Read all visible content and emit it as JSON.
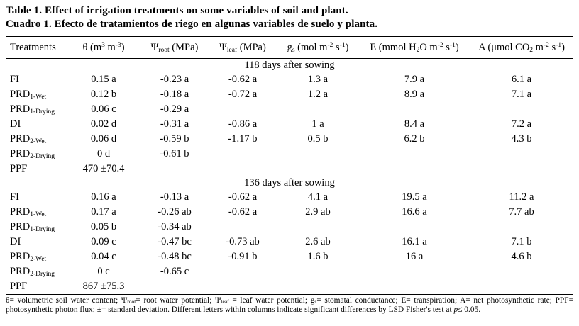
{
  "titles": {
    "english": "Table 1. Effect of irrigation treatments on some variables of soil and plant.",
    "spanish": "Cuadro 1. Efecto de tratamientos de riego en algunas variables de suelo y planta."
  },
  "table": {
    "headers": [
      {
        "id": "treatments",
        "parts": [
          {
            "t": "Treatments"
          }
        ]
      },
      {
        "id": "theta",
        "parts": [
          {
            "t": "θ (m"
          },
          {
            "t": "3",
            "s": "sup"
          },
          {
            "t": " m"
          },
          {
            "t": "-3",
            "s": "sup"
          },
          {
            "t": ")"
          }
        ]
      },
      {
        "id": "psi-root",
        "parts": [
          {
            "t": "Ψ"
          },
          {
            "t": "root",
            "s": "sub"
          },
          {
            "t": " (MPa)"
          }
        ]
      },
      {
        "id": "psi-leaf",
        "parts": [
          {
            "t": "Ψ"
          },
          {
            "t": "leaf",
            "s": "sub"
          },
          {
            "t": " (MPa)"
          }
        ]
      },
      {
        "id": "gs",
        "parts": [
          {
            "t": "g"
          },
          {
            "t": "s",
            "s": "sub"
          },
          {
            "t": " (mol m"
          },
          {
            "t": "-2",
            "s": "sup"
          },
          {
            "t": " s"
          },
          {
            "t": "-1",
            "s": "sup"
          },
          {
            "t": ")"
          }
        ]
      },
      {
        "id": "E",
        "parts": [
          {
            "t": "E (mmol H"
          },
          {
            "t": "2",
            "s": "sub"
          },
          {
            "t": "O m"
          },
          {
            "t": "-2",
            "s": "sup"
          },
          {
            "t": " s"
          },
          {
            "t": "-1",
            "s": "sup"
          },
          {
            "t": ")"
          }
        ]
      },
      {
        "id": "A",
        "parts": [
          {
            "t": "A (μmol CO"
          },
          {
            "t": "2",
            "s": "sub"
          },
          {
            "t": " m"
          },
          {
            "t": "-2",
            "s": "sup"
          },
          {
            "t": " s"
          },
          {
            "t": "-1",
            "s": "sup"
          },
          {
            "t": ")"
          }
        ]
      }
    ],
    "sections": [
      {
        "label": "118 days after sowing",
        "rows": [
          {
            "treatment": [
              {
                "t": "FI"
              }
            ],
            "values": [
              "0.15 a",
              "-0.23 a",
              "-0.62 a",
              "1.3 a",
              "7.9 a",
              "6.1 a"
            ]
          },
          {
            "treatment": [
              {
                "t": "PRD"
              },
              {
                "t": "1-Wet",
                "s": "sub"
              }
            ],
            "values": [
              "0.12 b",
              "-0.18 a",
              "-0.72 a",
              "1.2 a",
              "8.9 a",
              "7.1 a"
            ]
          },
          {
            "treatment": [
              {
                "t": "PRD"
              },
              {
                "t": "1-Drying",
                "s": "sub"
              }
            ],
            "values": [
              "0.06 c",
              "-0.29 a",
              "",
              "",
              "",
              ""
            ]
          },
          {
            "treatment": [
              {
                "t": "DI"
              }
            ],
            "values": [
              "0.02 d",
              "-0.31 a",
              "-0.86 a",
              "1 a",
              "8.4 a",
              "7.2 a"
            ]
          },
          {
            "treatment": [
              {
                "t": "PRD"
              },
              {
                "t": "2-Wet",
                "s": "sub"
              }
            ],
            "values": [
              "0.06 d",
              "-0.59 b",
              "-1.17 b",
              "0.5 b",
              "6.2 b",
              "4.3 b"
            ]
          },
          {
            "treatment": [
              {
                "t": "PRD"
              },
              {
                "t": "2-Drying",
                "s": "sub"
              }
            ],
            "values": [
              "0 d",
              "-0.61 b",
              "",
              "",
              "",
              ""
            ]
          },
          {
            "treatment": [
              {
                "t": "PPF"
              }
            ],
            "values": [
              "470 ±70.4",
              "",
              "",
              "",
              "",
              ""
            ]
          }
        ]
      },
      {
        "label": "136 days after sowing",
        "rows": [
          {
            "treatment": [
              {
                "t": "FI"
              }
            ],
            "values": [
              "0.16 a",
              "-0.13 a",
              "-0.62 a",
              "4.1 a",
              "19.5 a",
              "11.2 a"
            ]
          },
          {
            "treatment": [
              {
                "t": "PRD"
              },
              {
                "t": "1-Wet",
                "s": "sub"
              }
            ],
            "values": [
              "0.17 a",
              "-0.26 ab",
              "-0.62 a",
              "2.9 ab",
              "16.6 a",
              "7.7 ab"
            ]
          },
          {
            "treatment": [
              {
                "t": "PRD"
              },
              {
                "t": "1-Drying",
                "s": "sub"
              }
            ],
            "values": [
              "0.05 b",
              "-0.34 ab",
              "",
              "",
              "",
              ""
            ]
          },
          {
            "treatment": [
              {
                "t": "DI"
              }
            ],
            "values": [
              "0.09 c",
              "-0.47 bc",
              "-0.73 ab",
              "2.6 ab",
              "16.1 a",
              "7.1 b"
            ]
          },
          {
            "treatment": [
              {
                "t": "PRD"
              },
              {
                "t": "2-Wet",
                "s": "sub"
              }
            ],
            "values": [
              "0.04 c",
              "-0.48 bc",
              "-0.91 b",
              "1.6 b",
              "16 a",
              "4.6 b"
            ]
          },
          {
            "treatment": [
              {
                "t": "PRD"
              },
              {
                "t": "2-Drying",
                "s": "sub"
              }
            ],
            "values": [
              "0 c",
              "-0.65 c",
              "",
              "",
              "",
              ""
            ]
          },
          {
            "treatment": [
              {
                "t": "PPF"
              }
            ],
            "values": [
              "867 ±75.3",
              "",
              "",
              "",
              "",
              ""
            ]
          }
        ]
      }
    ]
  },
  "footnote": {
    "parts": [
      {
        "t": "θ= volumetric soil water content; Ψ"
      },
      {
        "t": "root",
        "s": "sub"
      },
      {
        "t": "= root water potential; Ψ"
      },
      {
        "t": "leaf",
        "s": "sub"
      },
      {
        "t": " = leaf water potential; g"
      },
      {
        "t": "s",
        "s": "sub"
      },
      {
        "t": "= stomatal conductance; E= transpiration; A= net photosynthetic rate; PPF= photosynthetic photon flux; ±= standard deviation. Different letters within columns indicate significant differences by LSD Fisher's test at "
      },
      {
        "t": "p",
        "s": "i"
      },
      {
        "t": "≤ 0.05."
      }
    ]
  }
}
